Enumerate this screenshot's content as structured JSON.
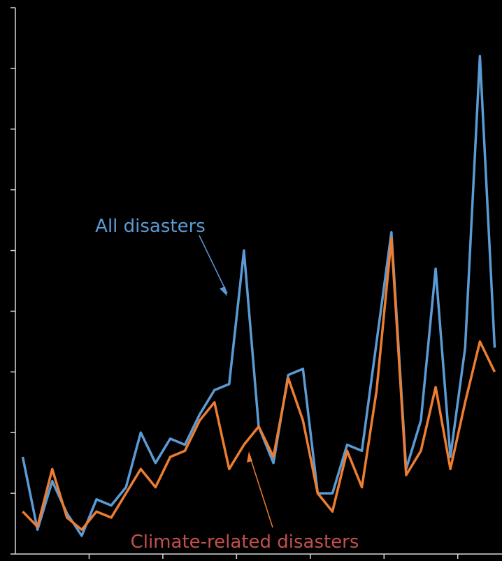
{
  "chart_data": {
    "type": "line",
    "categories": [
      null,
      null,
      null,
      null,
      null,
      null,
      null,
      null,
      null,
      null,
      null,
      null,
      null,
      null,
      null,
      null,
      null,
      null,
      null,
      null,
      null,
      null,
      null,
      null,
      null,
      null,
      null,
      null,
      null,
      null,
      null,
      null,
      null
    ],
    "series": [
      {
        "name": "All disasters",
        "color": "#5b9bd5",
        "values": [
          1.6,
          0.4,
          1.2,
          0.67,
          0.3,
          0.9,
          0.8,
          1.1,
          2.0,
          1.5,
          1.9,
          1.8,
          2.3,
          2.7,
          2.8,
          5.0,
          2.1,
          1.5,
          2.95,
          3.05,
          1.0,
          1.0,
          1.8,
          1.7,
          3.5,
          5.3,
          1.4,
          2.2,
          4.7,
          1.6,
          3.4,
          8.2,
          3.4
        ]
      },
      {
        "name": "Climate-related disasters",
        "color": "#ed7d31",
        "label_color": "#c0504d",
        "values": [
          0.7,
          0.45,
          1.4,
          0.6,
          0.4,
          0.7,
          0.6,
          1.0,
          1.4,
          1.1,
          1.6,
          1.7,
          2.2,
          2.5,
          1.4,
          1.8,
          2.1,
          1.6,
          2.9,
          2.2,
          1.0,
          0.7,
          1.7,
          1.1,
          2.7,
          5.2,
          1.3,
          1.7,
          2.75,
          1.4,
          2.5,
          3.5,
          3.0
        ]
      }
    ],
    "ylim": [
      0,
      9
    ],
    "yticks": [
      0,
      1,
      2,
      3,
      4,
      5,
      6,
      7,
      8,
      9
    ]
  }
}
